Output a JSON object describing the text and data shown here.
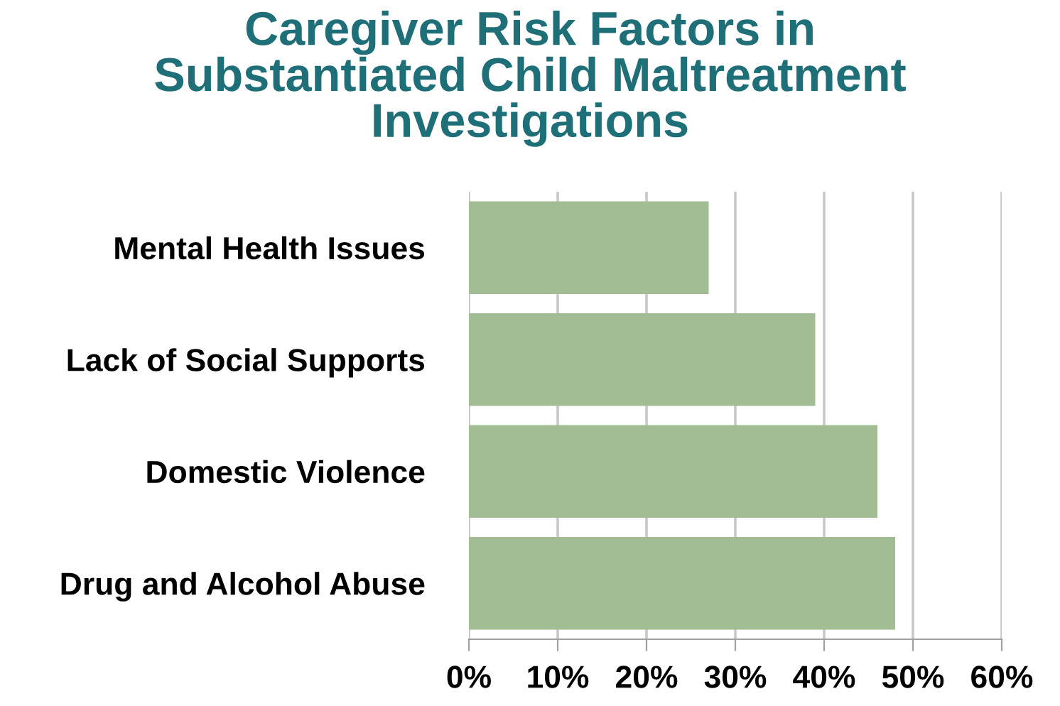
{
  "chart_data": {
    "type": "bar",
    "orientation": "horizontal",
    "title": "Caregiver Risk Factors in\nSubstantiated Child Maltreatment\nInvestigations",
    "categories": [
      "Mental Health Issues",
      "Lack of Social Supports",
      "Domestic Violence",
      "Drug and Alcohol Abuse"
    ],
    "values": [
      27,
      39,
      46,
      48
    ],
    "color": "#a2bd93",
    "xlim": [
      0,
      60
    ],
    "xticks": [
      {
        "value": 0,
        "label": "0%"
      },
      {
        "value": 10,
        "label": "10%"
      },
      {
        "value": 20,
        "label": "20%"
      },
      {
        "value": 30,
        "label": "30%"
      },
      {
        "value": 40,
        "label": "40%"
      },
      {
        "value": 50,
        "label": "50%"
      },
      {
        "value": 60,
        "label": "60%"
      }
    ],
    "grid": "x",
    "legend": false
  }
}
